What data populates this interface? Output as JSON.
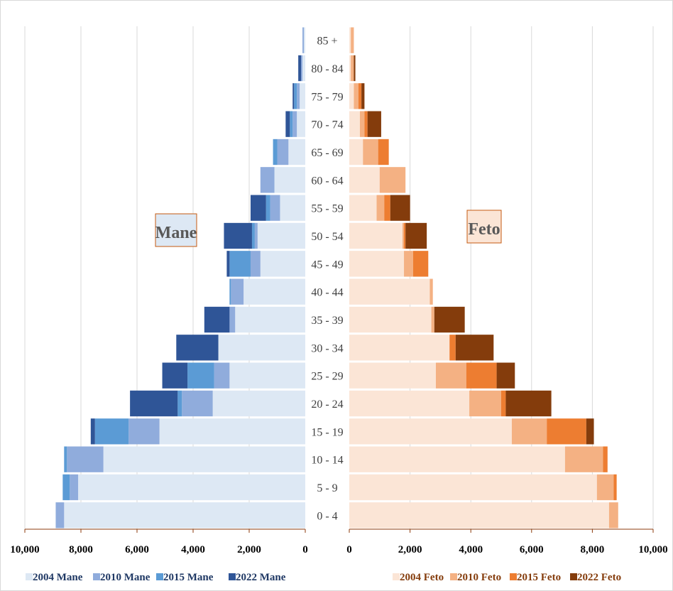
{
  "chart_data": {
    "type": "bar",
    "subtype": "stacked-horizontal-population-pyramid",
    "categories": [
      "85 +",
      "80 - 84",
      "75 - 79",
      "70 - 74",
      "65 - 69",
      "60 - 64",
      "55 - 59",
      "50 - 54",
      "45 - 49",
      "40 - 44",
      "35 - 39",
      "30 - 34",
      "25 - 29",
      "20 - 24",
      "15 - 19",
      "10 - 14",
      "5 - 9",
      "0 - 4"
    ],
    "panels": [
      {
        "id": "mane",
        "label": "Mane",
        "direction": "left",
        "xlim": [
          0,
          10000
        ],
        "ticks": [
          "10,000",
          "8,000",
          "6,000",
          "4,000",
          "2,000",
          "0"
        ],
        "tick_values": [
          10000,
          8000,
          6000,
          4000,
          2000,
          0
        ],
        "series": [
          {
            "name": "2004 Mane",
            "color": "#dde8f4",
            "values": [
              50,
              100,
              200,
              300,
              600,
              1100,
              900,
              1700,
              1600,
              2200,
              2500,
              3100,
              2700,
              3300,
              5200,
              7200,
              8100,
              8600
            ]
          },
          {
            "name": "2010 Mane",
            "color": "#90acdc",
            "values": [
              50,
              50,
              100,
              150,
              400,
              500,
              350,
              100,
              350,
              450,
              200,
              0,
              550,
              1100,
              1100,
              1300,
              300,
              300
            ]
          },
          {
            "name": "2015 Mane",
            "color": "#5b9bd5",
            "values": [
              0,
              0,
              100,
              100,
              150,
              0,
              150,
              100,
              750,
              50,
              0,
              0,
              950,
              150,
              1200,
              100,
              250,
              0
            ]
          },
          {
            "name": "2022 Mane",
            "color": "#2f5597",
            "values": [
              0,
              100,
              50,
              150,
              0,
              0,
              550,
              1000,
              100,
              0,
              900,
              1500,
              900,
              1700,
              150,
              0,
              0,
              0
            ]
          }
        ]
      },
      {
        "id": "feto",
        "label": "Feto",
        "direction": "right",
        "xlim": [
          0,
          10000
        ],
        "ticks": [
          "0",
          "2,000",
          "4,000",
          "6,000",
          "8,000",
          "10,000"
        ],
        "tick_values": [
          0,
          2000,
          4000,
          6000,
          8000,
          10000
        ],
        "series": [
          {
            "name": "2004 Feto",
            "color": "#fbe5d6",
            "values": [
              50,
              50,
              150,
              350,
              450,
              1000,
              900,
              1750,
              1800,
              2650,
              2700,
              3300,
              2850,
              3950,
              5350,
              7100,
              8150,
              8550
            ]
          },
          {
            "name": "2010 Feto",
            "color": "#f4b183",
            "values": [
              100,
              100,
              150,
              150,
              500,
              850,
              250,
              50,
              300,
              100,
              100,
              0,
              1000,
              1050,
              1150,
              1250,
              550,
              300
            ]
          },
          {
            "name": "2015 Feto",
            "color": "#ed7d31",
            "values": [
              0,
              0,
              100,
              100,
              350,
              0,
              200,
              50,
              500,
              0,
              0,
              200,
              1000,
              150,
              1300,
              150,
              100,
              0
            ]
          },
          {
            "name": "2022 Feto",
            "color": "#843c0c",
            "values": [
              0,
              50,
              100,
              450,
              0,
              0,
              650,
              700,
              0,
              0,
              1000,
              1250,
              600,
              1500,
              250,
              0,
              0,
              0
            ]
          }
        ]
      }
    ],
    "grid": true,
    "legend_position": "bottom"
  }
}
